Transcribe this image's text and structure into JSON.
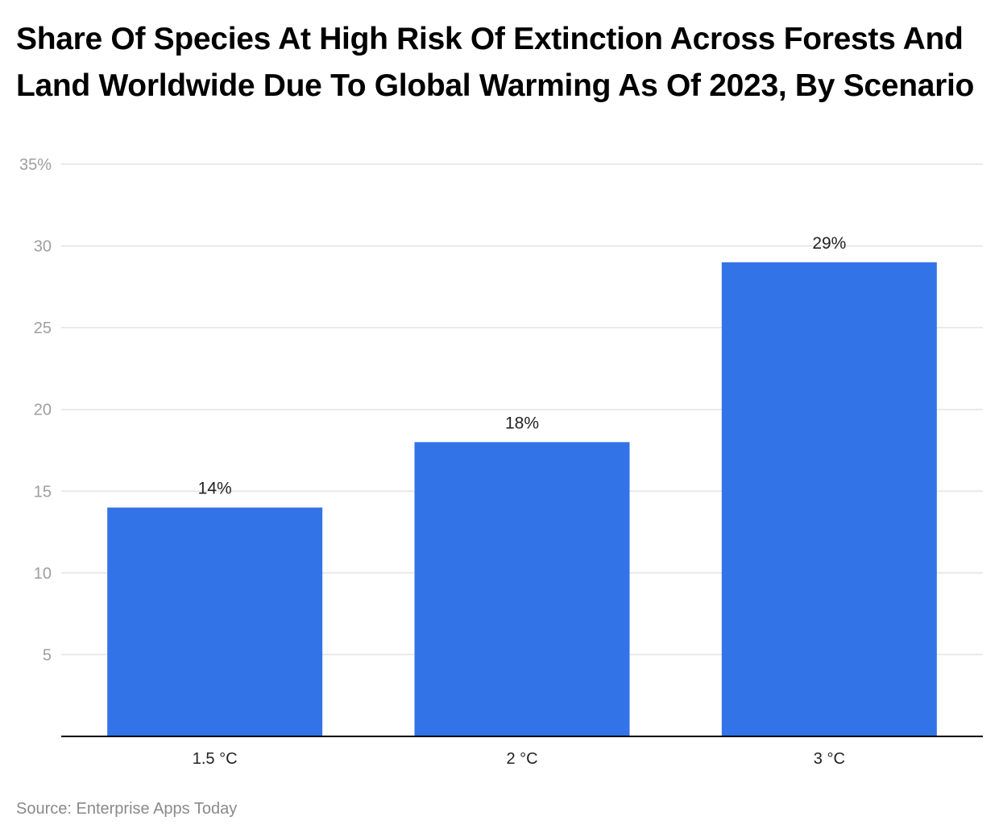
{
  "chart_data": {
    "type": "bar",
    "title": "Share Of Species At High Risk Of Extinction Across Forests And Land Worldwide Due To Global Warming As Of 2023, By Scenario",
    "xlabel": "",
    "ylabel": "",
    "categories": [
      "1.5 °C",
      "2 °C",
      "3 °C"
    ],
    "values": [
      14,
      18,
      29
    ],
    "value_labels": [
      "14%",
      "18%",
      "29%"
    ],
    "ylim": [
      0,
      35
    ],
    "y_ticks": [
      5,
      10,
      15,
      20,
      25,
      30,
      35
    ],
    "y_tick_labels": [
      "5",
      "10",
      "15",
      "20",
      "25",
      "30",
      "35%"
    ],
    "grid": true,
    "legend": "none",
    "bar_color": "#3373e8",
    "grid_color": "#e3e3e3",
    "axis_color": "#000000"
  },
  "source": "Source: Enterprise Apps Today"
}
